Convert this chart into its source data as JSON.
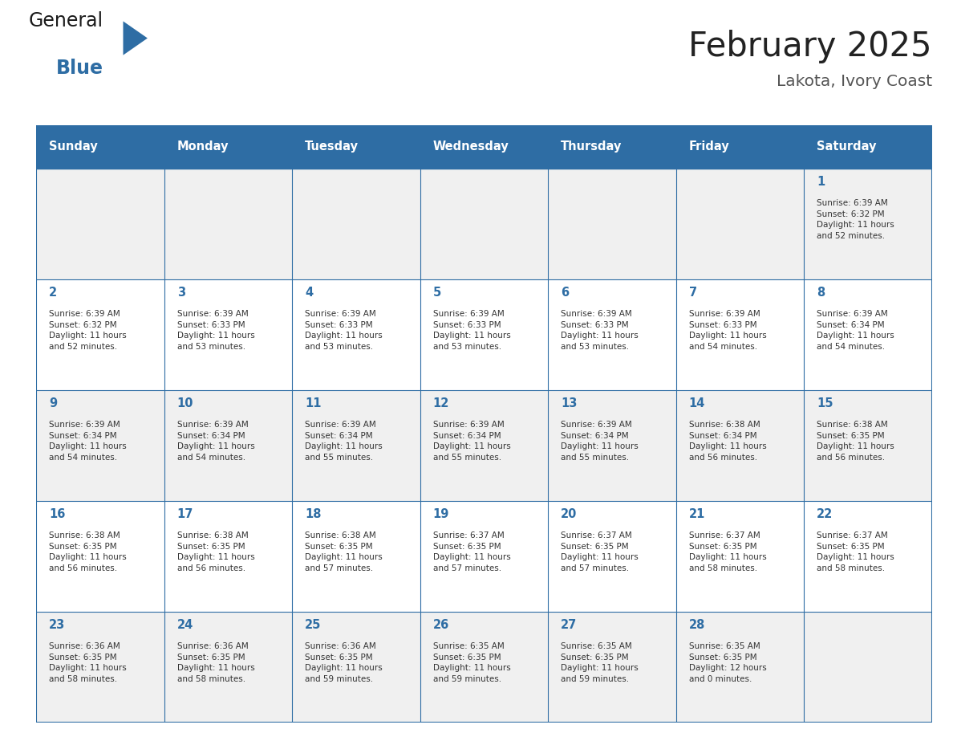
{
  "title": "February 2025",
  "subtitle": "Lakota, Ivory Coast",
  "days_of_week": [
    "Sunday",
    "Monday",
    "Tuesday",
    "Wednesday",
    "Thursday",
    "Friday",
    "Saturday"
  ],
  "header_bg": "#2E6DA4",
  "header_text_color": "#FFFFFF",
  "cell_border_color": "#2E6DA4",
  "day_number_color": "#2E6DA4",
  "cell_text_color": "#333333",
  "background_color": "#FFFFFF",
  "cell_bg_alt": "#F0F0F0",
  "title_color": "#222222",
  "subtitle_color": "#555555",
  "logo_general_color": "#1a1a1a",
  "logo_blue_color": "#2E6DA4",
  "calendar_data": [
    [
      {
        "day": null,
        "info": null
      },
      {
        "day": null,
        "info": null
      },
      {
        "day": null,
        "info": null
      },
      {
        "day": null,
        "info": null
      },
      {
        "day": null,
        "info": null
      },
      {
        "day": null,
        "info": null
      },
      {
        "day": 1,
        "info": "Sunrise: 6:39 AM\nSunset: 6:32 PM\nDaylight: 11 hours\nand 52 minutes."
      }
    ],
    [
      {
        "day": 2,
        "info": "Sunrise: 6:39 AM\nSunset: 6:32 PM\nDaylight: 11 hours\nand 52 minutes."
      },
      {
        "day": 3,
        "info": "Sunrise: 6:39 AM\nSunset: 6:33 PM\nDaylight: 11 hours\nand 53 minutes."
      },
      {
        "day": 4,
        "info": "Sunrise: 6:39 AM\nSunset: 6:33 PM\nDaylight: 11 hours\nand 53 minutes."
      },
      {
        "day": 5,
        "info": "Sunrise: 6:39 AM\nSunset: 6:33 PM\nDaylight: 11 hours\nand 53 minutes."
      },
      {
        "day": 6,
        "info": "Sunrise: 6:39 AM\nSunset: 6:33 PM\nDaylight: 11 hours\nand 53 minutes."
      },
      {
        "day": 7,
        "info": "Sunrise: 6:39 AM\nSunset: 6:33 PM\nDaylight: 11 hours\nand 54 minutes."
      },
      {
        "day": 8,
        "info": "Sunrise: 6:39 AM\nSunset: 6:34 PM\nDaylight: 11 hours\nand 54 minutes."
      }
    ],
    [
      {
        "day": 9,
        "info": "Sunrise: 6:39 AM\nSunset: 6:34 PM\nDaylight: 11 hours\nand 54 minutes."
      },
      {
        "day": 10,
        "info": "Sunrise: 6:39 AM\nSunset: 6:34 PM\nDaylight: 11 hours\nand 54 minutes."
      },
      {
        "day": 11,
        "info": "Sunrise: 6:39 AM\nSunset: 6:34 PM\nDaylight: 11 hours\nand 55 minutes."
      },
      {
        "day": 12,
        "info": "Sunrise: 6:39 AM\nSunset: 6:34 PM\nDaylight: 11 hours\nand 55 minutes."
      },
      {
        "day": 13,
        "info": "Sunrise: 6:39 AM\nSunset: 6:34 PM\nDaylight: 11 hours\nand 55 minutes."
      },
      {
        "day": 14,
        "info": "Sunrise: 6:38 AM\nSunset: 6:34 PM\nDaylight: 11 hours\nand 56 minutes."
      },
      {
        "day": 15,
        "info": "Sunrise: 6:38 AM\nSunset: 6:35 PM\nDaylight: 11 hours\nand 56 minutes."
      }
    ],
    [
      {
        "day": 16,
        "info": "Sunrise: 6:38 AM\nSunset: 6:35 PM\nDaylight: 11 hours\nand 56 minutes."
      },
      {
        "day": 17,
        "info": "Sunrise: 6:38 AM\nSunset: 6:35 PM\nDaylight: 11 hours\nand 56 minutes."
      },
      {
        "day": 18,
        "info": "Sunrise: 6:38 AM\nSunset: 6:35 PM\nDaylight: 11 hours\nand 57 minutes."
      },
      {
        "day": 19,
        "info": "Sunrise: 6:37 AM\nSunset: 6:35 PM\nDaylight: 11 hours\nand 57 minutes."
      },
      {
        "day": 20,
        "info": "Sunrise: 6:37 AM\nSunset: 6:35 PM\nDaylight: 11 hours\nand 57 minutes."
      },
      {
        "day": 21,
        "info": "Sunrise: 6:37 AM\nSunset: 6:35 PM\nDaylight: 11 hours\nand 58 minutes."
      },
      {
        "day": 22,
        "info": "Sunrise: 6:37 AM\nSunset: 6:35 PM\nDaylight: 11 hours\nand 58 minutes."
      }
    ],
    [
      {
        "day": 23,
        "info": "Sunrise: 6:36 AM\nSunset: 6:35 PM\nDaylight: 11 hours\nand 58 minutes."
      },
      {
        "day": 24,
        "info": "Sunrise: 6:36 AM\nSunset: 6:35 PM\nDaylight: 11 hours\nand 58 minutes."
      },
      {
        "day": 25,
        "info": "Sunrise: 6:36 AM\nSunset: 6:35 PM\nDaylight: 11 hours\nand 59 minutes."
      },
      {
        "day": 26,
        "info": "Sunrise: 6:35 AM\nSunset: 6:35 PM\nDaylight: 11 hours\nand 59 minutes."
      },
      {
        "day": 27,
        "info": "Sunrise: 6:35 AM\nSunset: 6:35 PM\nDaylight: 11 hours\nand 59 minutes."
      },
      {
        "day": 28,
        "info": "Sunrise: 6:35 AM\nSunset: 6:35 PM\nDaylight: 12 hours\nand 0 minutes."
      },
      {
        "day": null,
        "info": null
      }
    ]
  ]
}
